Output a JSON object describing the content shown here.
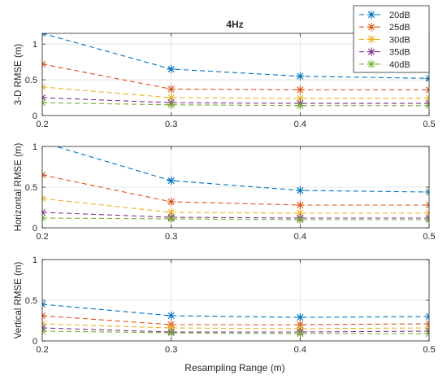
{
  "chart_data": {
    "type": "line",
    "title": "4Hz",
    "xlabel": "Resampling Range (m)",
    "x": [
      0.2,
      0.3,
      0.4,
      0.5
    ],
    "xlim": [
      0.2,
      0.5
    ],
    "xticks": [
      "0.2",
      "0.3",
      "0.4",
      "0.5"
    ],
    "grid": true,
    "legend_placement": "top-right",
    "series_meta": [
      {
        "name": "20dB",
        "color": "#0072BD"
      },
      {
        "name": "25dB",
        "color": "#D95319"
      },
      {
        "name": "30dB",
        "color": "#EDB120"
      },
      {
        "name": "35dB",
        "color": "#7E2F8E"
      },
      {
        "name": "40dB",
        "color": "#77AC30"
      }
    ],
    "panels": [
      {
        "ylabel": "3-D RMSE (m)",
        "ylim": [
          0,
          1.15
        ],
        "yticks": [
          0,
          0.5,
          1
        ],
        "ytick_labels": [
          "0",
          "0.5",
          "1"
        ],
        "series": [
          {
            "name": "20dB",
            "values": [
              1.15,
              0.65,
              0.55,
              0.52
            ]
          },
          {
            "name": "25dB",
            "values": [
              0.72,
              0.37,
              0.36,
              0.36
            ]
          },
          {
            "name": "30dB",
            "values": [
              0.4,
              0.25,
              0.24,
              0.24
            ]
          },
          {
            "name": "35dB",
            "values": [
              0.25,
              0.18,
              0.17,
              0.17
            ]
          },
          {
            "name": "40dB",
            "values": [
              0.18,
              0.15,
              0.14,
              0.14
            ]
          }
        ]
      },
      {
        "ylabel": "Horizontal RMSE (m)",
        "ylim": [
          0,
          1
        ],
        "yticks": [
          0,
          0.5,
          1
        ],
        "ytick_labels": [
          "0",
          "0.5",
          "1"
        ],
        "series": [
          {
            "name": "20dB",
            "values": [
              1.05,
              0.58,
              0.46,
              0.44
            ]
          },
          {
            "name": "25dB",
            "values": [
              0.65,
              0.32,
              0.28,
              0.28
            ]
          },
          {
            "name": "30dB",
            "values": [
              0.36,
              0.19,
              0.18,
              0.18
            ]
          },
          {
            "name": "35dB",
            "values": [
              0.19,
              0.13,
              0.12,
              0.12
            ]
          },
          {
            "name": "40dB",
            "values": [
              0.12,
              0.11,
              0.1,
              0.1
            ]
          }
        ]
      },
      {
        "ylabel": "Vertical RMSE (m)",
        "ylim": [
          0,
          1
        ],
        "yticks": [
          0,
          0.5,
          1
        ],
        "ytick_labels": [
          "0",
          "0.5",
          "1"
        ],
        "series": [
          {
            "name": "20dB",
            "values": [
              0.45,
              0.31,
              0.29,
              0.3
            ]
          },
          {
            "name": "25dB",
            "values": [
              0.31,
              0.2,
              0.2,
              0.21
            ]
          },
          {
            "name": "30dB",
            "values": [
              0.21,
              0.16,
              0.15,
              0.16
            ]
          },
          {
            "name": "35dB",
            "values": [
              0.16,
              0.11,
              0.11,
              0.12
            ]
          },
          {
            "name": "40dB",
            "values": [
              0.12,
              0.1,
              0.09,
              0.09
            ]
          }
        ]
      }
    ]
  }
}
